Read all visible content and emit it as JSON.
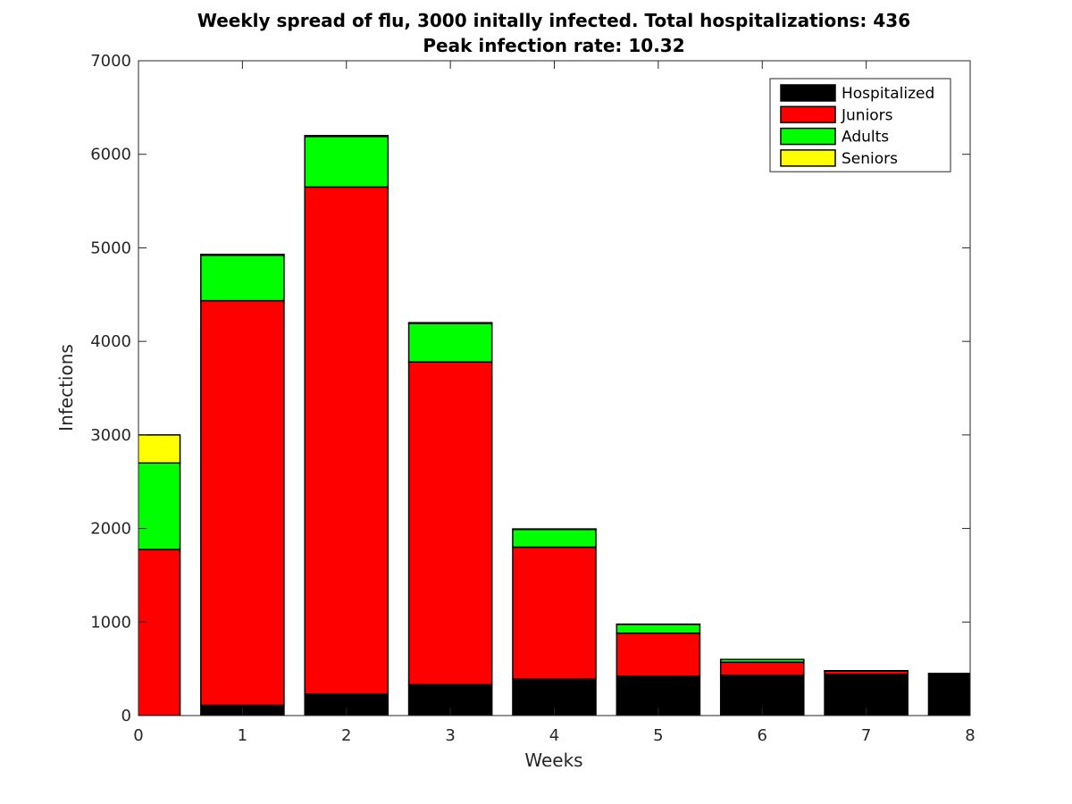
{
  "chart_data": {
    "type": "bar",
    "stacked": true,
    "title": "Weekly spread of flu, 3000 initally infected. Total hospitalizations: 436",
    "subtitle": "Peak infection rate: 10.32",
    "xlabel": "Weeks",
    "ylabel": "Infections",
    "xlim": [
      0,
      8
    ],
    "ylim": [
      0,
      7000
    ],
    "x_ticks": [
      "0",
      "1",
      "2",
      "3",
      "4",
      "5",
      "6",
      "7",
      "8"
    ],
    "y_ticks": [
      "0",
      "1000",
      "2000",
      "3000",
      "4000",
      "5000",
      "6000",
      "7000"
    ],
    "grid": false,
    "legend_position": "top-right",
    "x": [
      0,
      1,
      2,
      3,
      4,
      5,
      6,
      7,
      8
    ],
    "series": [
      {
        "name": "Hospitalized",
        "color": "#000000",
        "values": [
          0,
          110,
          230,
          330,
          390,
          420,
          430,
          440,
          450
        ]
      },
      {
        "name": "Juniors",
        "color": "#ff0000",
        "values": [
          1775,
          4325,
          5420,
          3450,
          1410,
          460,
          140,
          35,
          0
        ]
      },
      {
        "name": "Adults",
        "color": "#00ff00",
        "values": [
          925,
          485,
          540,
          410,
          190,
          95,
          30,
          5,
          0
        ]
      },
      {
        "name": "Seniors",
        "color": "#ffff00",
        "values": [
          300,
          10,
          10,
          10,
          5,
          2,
          0,
          0,
          0
        ]
      }
    ]
  }
}
